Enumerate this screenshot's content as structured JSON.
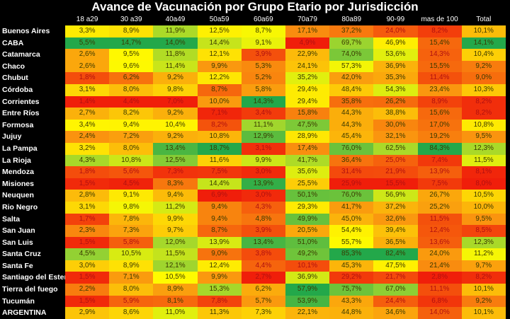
{
  "title": "Avance de Vacunación por Grupo Etario por Jurisdicción",
  "chart_data": {
    "type": "heatmap",
    "title": "Avance de Vacunación por Grupo Etario por Jurisdicción",
    "columns": [
      "18 a29",
      "30 a39",
      "40a49",
      "50a59",
      "60a69",
      "70a79",
      "80a89",
      "90-99",
      "mas de 100",
      "Total"
    ],
    "rows": [
      {
        "name": "Buenos Aires",
        "values": [
          "3,3%",
          "8,9%",
          "11,9%",
          "12,5%",
          "8,7%",
          "17,1%",
          "37,2%",
          "24,0%",
          "8,2%",
          "10,1%"
        ]
      },
      {
        "name": "CABA",
        "values": [
          "5,5%",
          "14,7%",
          "14,0%",
          "14,4%",
          "9,1%",
          "4,9%",
          "69,7%",
          "46,9%",
          "15,4%",
          "14,1%"
        ]
      },
      {
        "name": "Catamarca",
        "values": [
          "2,6%",
          "9,5%",
          "11,8%",
          "12,1%",
          "3,9%",
          "22,9%",
          "74,0%",
          "53,6%",
          "14,3%",
          "10,4%"
        ]
      },
      {
        "name": "Chaco",
        "values": [
          "2,6%",
          "9,6%",
          "11,4%",
          "9,9%",
          "5,3%",
          "24,1%",
          "57,3%",
          "36,9%",
          "15,5%",
          "9,2%"
        ]
      },
      {
        "name": "Chubut",
        "values": [
          "1,8%",
          "6,2%",
          "9,2%",
          "12,2%",
          "5,2%",
          "35,2%",
          "42,0%",
          "35,3%",
          "11,4%",
          "9,0%"
        ]
      },
      {
        "name": "Córdoba",
        "values": [
          "3,1%",
          "8,0%",
          "9,8%",
          "8,7%",
          "5,8%",
          "29,4%",
          "48,4%",
          "54,3%",
          "23,4%",
          "10,3%"
        ]
      },
      {
        "name": "Corrientes",
        "values": [
          "1,4%",
          "4,4%",
          "7,0%",
          "10,0%",
          "14,3%",
          "29,4%",
          "35,8%",
          "26,2%",
          "8,9%",
          "8,2%"
        ]
      },
      {
        "name": "Entre Ríos",
        "values": [
          "2,7%",
          "8,2%",
          "9,2%",
          "7,1%",
          "3,4%",
          "15,8%",
          "44,3%",
          "38,8%",
          "15,6%",
          "8,2%"
        ]
      },
      {
        "name": "Formosa",
        "values": [
          "3,4%",
          "9,4%",
          "10,4%",
          "8,2%",
          "11,1%",
          "47,5%",
          "44,3%",
          "30,0%",
          "17,0%",
          "10,8%"
        ]
      },
      {
        "name": "Jujuy",
        "values": [
          "2,4%",
          "7,2%",
          "9,2%",
          "10,8%",
          "12,9%",
          "28,9%",
          "45,4%",
          "32,1%",
          "19,2%",
          "9,5%"
        ]
      },
      {
        "name": "La Pampa",
        "values": [
          "3,2%",
          "8,0%",
          "13,4%",
          "18,7%",
          "3,1%",
          "17,4%",
          "76,0%",
          "62,5%",
          "84,3%",
          "12,3%"
        ]
      },
      {
        "name": "La Rioja",
        "values": [
          "4,3%",
          "10,8%",
          "12,5%",
          "11,6%",
          "9,9%",
          "41,7%",
          "36,4%",
          "25,0%",
          "7,4%",
          "11,5%"
        ]
      },
      {
        "name": "Mendoza",
        "values": [
          "1,8%",
          "5,6%",
          "7,3%",
          "7,5%",
          "3,0%",
          "35,6%",
          "31,4%",
          "21,9%",
          "13,9%",
          "8,1%"
        ]
      },
      {
        "name": "Misiones",
        "values": [
          "1,5%",
          "4,5%",
          "8,3%",
          "14,4%",
          "13,9%",
          "25,5%",
          "25,9%",
          "15,5%",
          "7,5%",
          "8,0%"
        ]
      },
      {
        "name": "Neuquen",
        "values": [
          "2,8%",
          "9,1%",
          "9,4%",
          "6,9%",
          "3,0%",
          "50,1%",
          "76,0%",
          "56,9%",
          "26,7%",
          "10,5%"
        ]
      },
      {
        "name": "Rio Negro",
        "values": [
          "3,1%",
          "9,8%",
          "11,2%",
          "9,4%",
          "4,3%",
          "29,3%",
          "41,7%",
          "37,2%",
          "25,2%",
          "10,0%"
        ]
      },
      {
        "name": "Salta",
        "values": [
          "1,7%",
          "7,8%",
          "9,9%",
          "9,4%",
          "4,8%",
          "49,9%",
          "45,0%",
          "32,6%",
          "11,5%",
          "9,5%"
        ]
      },
      {
        "name": "San Juan",
        "values": [
          "2,3%",
          "7,3%",
          "9,7%",
          "8,7%",
          "3,9%",
          "20,5%",
          "54,4%",
          "39,4%",
          "12,4%",
          "8,5%"
        ]
      },
      {
        "name": "San Luis",
        "values": [
          "1,5%",
          "5,8%",
          "12,0%",
          "13,9%",
          "13,4%",
          "51,0%",
          "55,7%",
          "36,5%",
          "13,6%",
          "12,3%"
        ]
      },
      {
        "name": "Santa Cruz",
        "values": [
          "4,5%",
          "10,5%",
          "11,5%",
          "9,0%",
          "3,8%",
          "49,2%",
          "85,3%",
          "82,4%",
          "24,0%",
          "11,2%"
        ]
      },
      {
        "name": "Santa Fe",
        "values": [
          "3,0%",
          "8,9%",
          "12,1%",
          "12,4%",
          "4,4%",
          "10,1%",
          "45,3%",
          "47,5%",
          "21,4%",
          "9,7%"
        ]
      },
      {
        "name": "Santiago del Estero",
        "values": [
          "1,5%",
          "7,1%",
          "10,5%",
          "9,9%",
          "2,7%",
          "36,9%",
          "29,2%",
          "21,7%",
          "2,8%",
          "8,2%"
        ]
      },
      {
        "name": "Tierra del fuego",
        "values": [
          "2,2%",
          "8,0%",
          "8,9%",
          "15,3%",
          "6,2%",
          "57,9%",
          "75,7%",
          "67,0%",
          "11,1%",
          "10,1%"
        ]
      },
      {
        "name": "Tucumán",
        "values": [
          "1,5%",
          "5,9%",
          "8,1%",
          "7,8%",
          "5,7%",
          "53,9%",
          "43,3%",
          "24,4%",
          "6,8%",
          "9,2%"
        ]
      },
      {
        "name": "ARGENTINA",
        "values": [
          "2,9%",
          "8,6%",
          "11,0%",
          "11,3%",
          "7,3%",
          "22,1%",
          "44,8%",
          "34,6%",
          "14,0%",
          "10,1%"
        ]
      }
    ],
    "color_scale": {
      "low": "#f8250a",
      "mid": "#ffff00",
      "high": "#23a84a"
    }
  }
}
